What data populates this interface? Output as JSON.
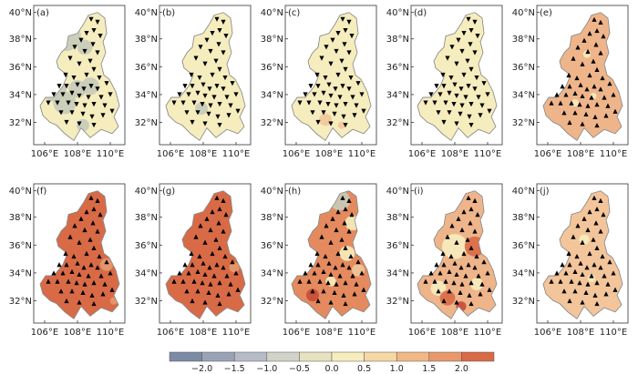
{
  "figure": {
    "panels": [
      {
        "id": "a",
        "label": "(a)",
        "fill": "#f6edbe",
        "patches": [
          {
            "c": "#c6cbb9",
            "cx": 0.22,
            "cy": 0.6,
            "r": 0.1
          },
          {
            "c": "#c6cbb9",
            "cx": 0.35,
            "cy": 0.22,
            "r": 0.12
          },
          {
            "c": "#c6cbb9",
            "cx": 0.34,
            "cy": 0.7,
            "r": 0.09
          },
          {
            "c": "#c6cbb9",
            "cx": 0.48,
            "cy": 0.6,
            "r": 0.07
          },
          {
            "c": "#c6cbb9",
            "cx": 0.56,
            "cy": 0.3,
            "r": 0.06
          },
          {
            "c": "#c6cbb9",
            "cx": 0.62,
            "cy": 0.58,
            "r": 0.07
          },
          {
            "c": "#c6cbb9",
            "cx": 0.54,
            "cy": 0.86,
            "r": 0.05
          }
        ],
        "marker": "down"
      },
      {
        "id": "b",
        "label": "(b)",
        "fill": "#f6edbe",
        "patches": [
          {
            "c": "#c6cbb9",
            "cx": 0.46,
            "cy": 0.74,
            "r": 0.05
          }
        ],
        "marker": "down"
      },
      {
        "id": "c",
        "label": "(c)",
        "fill": "#f6edbe",
        "patches": [
          {
            "c": "#f1c79a",
            "cx": 0.44,
            "cy": 0.82,
            "r": 0.05
          },
          {
            "c": "#f1c79a",
            "cx": 0.62,
            "cy": 0.86,
            "r": 0.03
          }
        ],
        "marker": "down"
      },
      {
        "id": "d",
        "label": "(d)",
        "fill": "#f6edbe",
        "patches": [],
        "marker": "down"
      },
      {
        "id": "e",
        "label": "(e)",
        "fill": "#efb58a",
        "patches": [
          {
            "c": "#f6edbe",
            "cx": 0.55,
            "cy": 0.35,
            "r": 0.03
          },
          {
            "c": "#f6edbe",
            "cx": 0.42,
            "cy": 0.7,
            "r": 0.03
          },
          {
            "c": "#f6edbe",
            "cx": 0.62,
            "cy": 0.65,
            "r": 0.025
          }
        ],
        "marker": "up"
      },
      {
        "id": "f",
        "label": "(f)",
        "fill": "#d96a46",
        "patches": [
          {
            "c": "#e59a6f",
            "cx": 0.8,
            "cy": 0.58,
            "r": 0.05
          },
          {
            "c": "#e59a6f",
            "cx": 0.88,
            "cy": 0.84,
            "r": 0.03
          }
        ],
        "marker": "up"
      },
      {
        "id": "g",
        "label": "(g)",
        "fill": "#d96a46",
        "patches": [
          {
            "c": "#e59a6f",
            "cx": 0.82,
            "cy": 0.6,
            "r": 0.04
          }
        ],
        "marker": "up"
      },
      {
        "id": "h",
        "label": "(h)",
        "fill": "#e48a5e",
        "patches": [
          {
            "c": "#c6cbb9",
            "cx": 0.6,
            "cy": 0.12,
            "r": 0.08
          },
          {
            "c": "#f6edbe",
            "cx": 0.74,
            "cy": 0.28,
            "r": 0.06
          },
          {
            "c": "#f6edbe",
            "cx": 0.68,
            "cy": 0.5,
            "r": 0.06
          },
          {
            "c": "#f1c79a",
            "cx": 0.8,
            "cy": 0.62,
            "r": 0.05
          },
          {
            "c": "#f6edbe",
            "cx": 0.5,
            "cy": 0.7,
            "r": 0.04
          },
          {
            "c": "#c64a36",
            "cx": 0.3,
            "cy": 0.8,
            "r": 0.05
          }
        ],
        "marker": "up"
      },
      {
        "id": "i",
        "label": "(i)",
        "fill": "#efb58a",
        "patches": [
          {
            "c": "#f6edbe",
            "cx": 0.48,
            "cy": 0.45,
            "r": 0.1
          },
          {
            "c": "#d96a46",
            "cx": 0.7,
            "cy": 0.45,
            "r": 0.08
          },
          {
            "c": "#f6edbe",
            "cx": 0.3,
            "cy": 0.75,
            "r": 0.06
          },
          {
            "c": "#d96a46",
            "cx": 0.4,
            "cy": 0.82,
            "r": 0.06
          },
          {
            "c": "#c64a36",
            "cx": 0.55,
            "cy": 0.88,
            "r": 0.04
          },
          {
            "c": "#f6edbe",
            "cx": 0.72,
            "cy": 0.72,
            "r": 0.05
          }
        ],
        "marker": "up"
      },
      {
        "id": "j",
        "label": "(j)",
        "fill": "#f3c59b",
        "patches": [
          {
            "c": "#f6edbe",
            "cx": 0.52,
            "cy": 0.4,
            "r": 0.04
          },
          {
            "c": "#f6edbe",
            "cx": 0.6,
            "cy": 0.68,
            "r": 0.03
          }
        ],
        "marker": "up"
      }
    ],
    "y_ticks": [
      "40°N",
      "38°N",
      "36°N",
      "34°N",
      "32°N"
    ],
    "x_ticks": [
      "106°E",
      "108°E",
      "110°E"
    ],
    "colorbar": {
      "colors": [
        "#7d8aa5",
        "#9aa3b6",
        "#b6bcc6",
        "#d1d3c8",
        "#e6e2bf",
        "#f6edbe",
        "#f7d7a3",
        "#f1b885",
        "#e8986b",
        "#d96a46"
      ],
      "labels": [
        "−2.0",
        "−1.5",
        "−1.0",
        "−0.5",
        "0.0",
        "0.5",
        "1.0",
        "1.5",
        "2.0"
      ]
    }
  }
}
